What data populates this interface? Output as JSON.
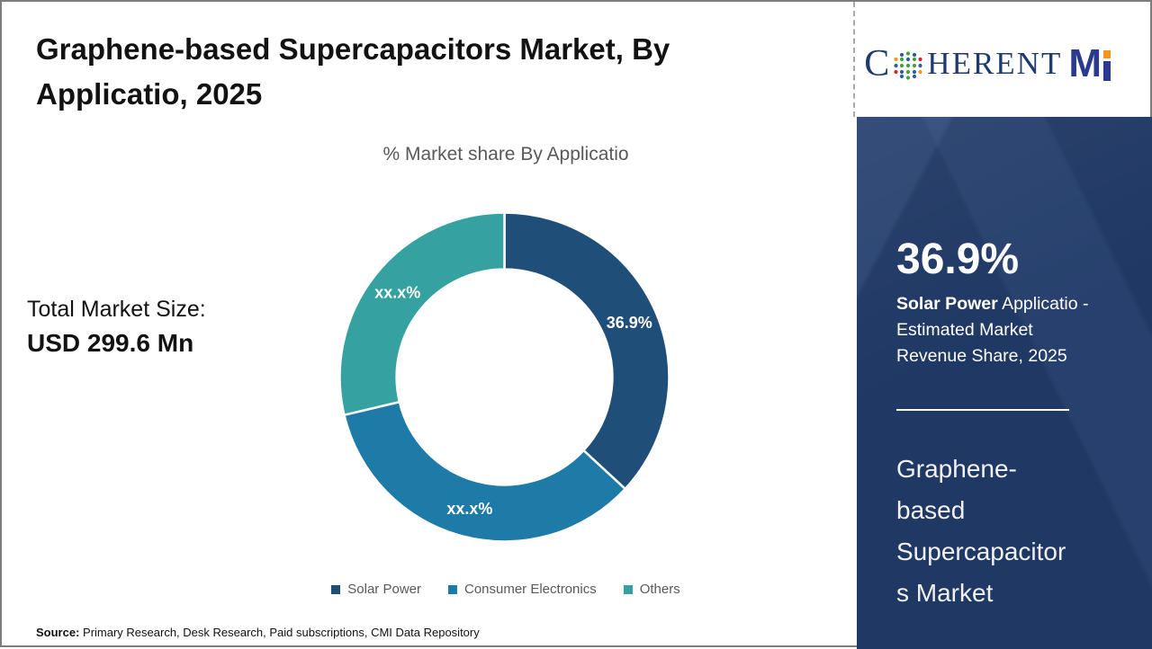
{
  "header": {
    "title": "Graphene-based Supercapacitors Market, By\nApplicatio, 2025"
  },
  "logo": {
    "part_c": "C",
    "part_herent": "HERENT",
    "part_m": "M",
    "full_name": "CoherentMI"
  },
  "stats": {
    "label": "Total Market Size:",
    "value": "USD 299.6 Mn"
  },
  "chart_data": {
    "type": "pie",
    "subtype": "donut",
    "title": "% Market share By Applicatio",
    "categories": [
      "Solar Power",
      "Consumer Electronics",
      "Others"
    ],
    "values": [
      36.9,
      34.4,
      28.7
    ],
    "labels": [
      "36.9%",
      "xx.x%",
      "xx.x%"
    ],
    "colors": [
      "#1F4E79",
      "#1E7AA6",
      "#35A2A1"
    ],
    "start_angle_deg": 0,
    "direction": "clockwise",
    "donut_hole_ratio": 0.655,
    "legend_position": "bottom"
  },
  "sidebar": {
    "background_color": "#1F3864",
    "stat_value": "36.9%",
    "stat_highlight": "Solar Power",
    "stat_description": "Applicatio -\nEstimated Market\nRevenue Share, 2025",
    "report_name": "Graphene-\nbased\nSupercapacitor\ns Market"
  },
  "footer": {
    "source_label": "Source:",
    "source_text": "Primary Research, Desk Research, Paid subscriptions, CMI Data Repository"
  }
}
